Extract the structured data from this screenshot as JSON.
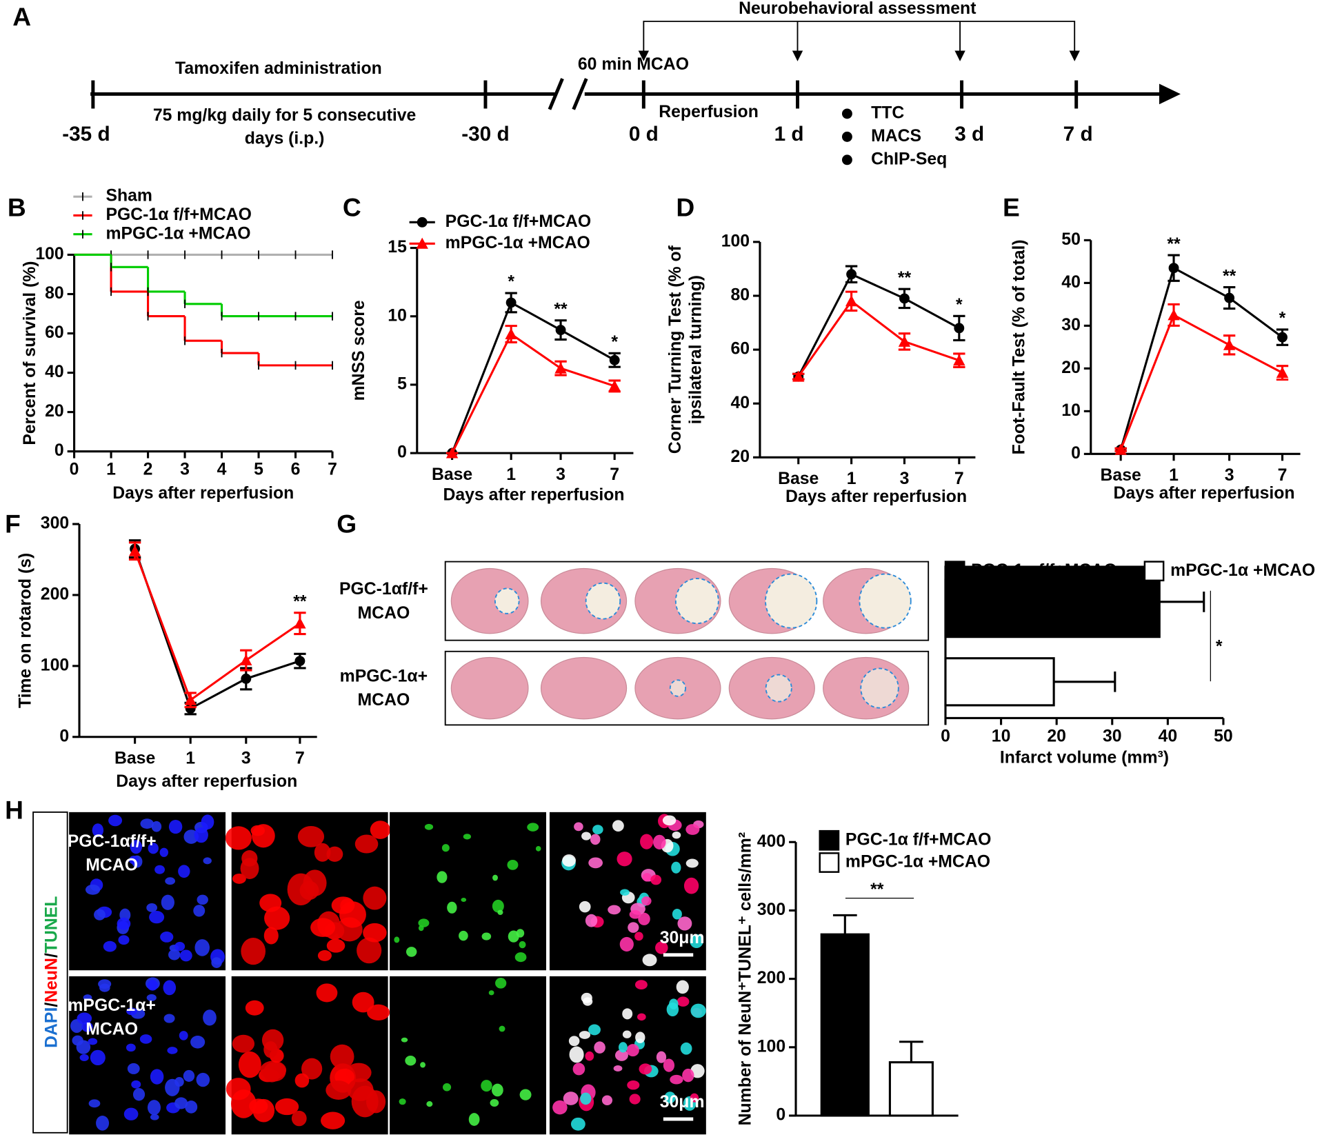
{
  "panel_labels": [
    "A",
    "B",
    "C",
    "D",
    "E",
    "F",
    "G",
    "H"
  ],
  "timeline": {
    "bracket_label": "Neurobehavioral assessment",
    "phase_label": "Tamoxifen administration",
    "dose_lines": [
      "75 mg/kg daily for 5 consecutive",
      "days (i.p.)"
    ],
    "mcao_label": "60 min MCAO",
    "reperfusion_label": "Reperfusion",
    "points": [
      "-35 d",
      "-30 d",
      "0 d",
      "1 d",
      "3 d",
      "7 d"
    ],
    "assays": [
      "TTC",
      "MACS",
      "ChIP-Seq"
    ]
  },
  "ttc_images": {
    "row_labels": [
      [
        "PGC-1αf/f+",
        "MCAO"
      ],
      [
        "mPGC-1α+",
        "MCAO"
      ]
    ]
  },
  "micrographs": {
    "stain_label": [
      "DAPI",
      "/",
      "NeuN",
      "/",
      "TUNEL"
    ],
    "row_labels": [
      [
        "PGC-1αf/f+",
        "MCAO"
      ],
      [
        "mPGC-1α+",
        "MCAO"
      ]
    ],
    "scale_bar": "30μm"
  },
  "chart_data": [
    {
      "type": "step",
      "x": [
        0,
        1,
        2,
        3,
        4,
        5,
        6,
        7
      ],
      "xlim": [
        0,
        7
      ],
      "xticks": [
        0,
        1,
        2,
        3,
        4,
        5,
        6,
        7
      ],
      "ylim": [
        0,
        100
      ],
      "yticks": [
        0,
        20,
        40,
        60,
        80,
        100
      ],
      "x_label": "Days after reperfusion",
      "y_label": "Percent of survival (%)",
      "series": [
        {
          "name": "Sham",
          "color": "#b0b0b0",
          "values": [
            100,
            100,
            100,
            100,
            100,
            100,
            100,
            100
          ]
        },
        {
          "name": "PGC-1α f/f+MCAO",
          "color": "#ff0000",
          "values": [
            100,
            81.25,
            68.75,
            56.25,
            50,
            43.75,
            43.75,
            43.75
          ]
        },
        {
          "name": "mPGC-1α +MCAO",
          "color": "#00cc00",
          "values": [
            100,
            93.75,
            81.25,
            75,
            68.75,
            68.75,
            68.75,
            68.75
          ]
        }
      ]
    },
    {
      "type": "line",
      "categories": [
        "Base",
        "1",
        "3",
        "7"
      ],
      "ylim": [
        0,
        15
      ],
      "yticks": [
        0,
        5,
        10,
        15
      ],
      "x_label": "Days after reperfusion",
      "y_label": "mNSS score",
      "annotations": [
        null,
        "*",
        "**",
        "*"
      ],
      "series": [
        {
          "name": "PGC-1α f/f+MCAO",
          "color": "#000000",
          "marker": "circle",
          "values": [
            0,
            11,
            9,
            6.8
          ],
          "errors": [
            0,
            0.7,
            0.7,
            0.5
          ]
        },
        {
          "name": "mPGC-1α +MCAO",
          "color": "#ff0000",
          "marker": "triangle",
          "values": [
            0,
            8.7,
            6.2,
            4.9
          ],
          "errors": [
            0,
            0.6,
            0.5,
            0.4
          ]
        }
      ]
    },
    {
      "type": "line",
      "categories": [
        "Base",
        "1",
        "3",
        "7"
      ],
      "ylim": [
        20,
        100
      ],
      "yticks": [
        20,
        40,
        60,
        80,
        100
      ],
      "x_label": "Days after reperfusion",
      "y_label": [
        "Corner Turning Test (% of",
        "ipsilateral turning)"
      ],
      "annotations": [
        null,
        null,
        "**",
        "*"
      ],
      "series": [
        {
          "color": "#000000",
          "marker": "circle",
          "values": [
            50,
            88,
            79,
            68
          ],
          "errors": [
            1,
            3,
            3.5,
            4.5
          ]
        },
        {
          "color": "#ff0000",
          "marker": "triangle",
          "values": [
            50,
            78,
            63,
            56
          ],
          "errors": [
            1,
            3.5,
            3,
            2.5
          ]
        }
      ]
    },
    {
      "type": "line",
      "categories": [
        "Base",
        "1",
        "3",
        "7"
      ],
      "ylim": [
        0,
        50
      ],
      "yticks": [
        0,
        10,
        20,
        30,
        40,
        50
      ],
      "x_label": "Days after reperfusion",
      "y_label": "Foot-Fault Test (% of total)",
      "annotations": [
        null,
        "**",
        "**",
        "*"
      ],
      "series": [
        {
          "color": "#000000",
          "marker": "circle",
          "values": [
            1,
            43.5,
            36.5,
            27.3
          ],
          "errors": [
            0.3,
            3,
            2.5,
            1.8
          ]
        },
        {
          "color": "#ff0000",
          "marker": "triangle",
          "values": [
            1,
            32.5,
            25.5,
            19
          ],
          "errors": [
            0.3,
            2.5,
            2.2,
            1.6
          ]
        }
      ]
    },
    {
      "type": "line",
      "categories": [
        "Base",
        "1",
        "3",
        "7"
      ],
      "ylim": [
        0,
        300
      ],
      "yticks": [
        0,
        100,
        200,
        300
      ],
      "x_label": "Days after reperfusion",
      "y_label": "Time on rotarod (s)",
      "annotations": [
        null,
        null,
        null,
        "**"
      ],
      "series": [
        {
          "color": "#000000",
          "marker": "circle",
          "values": [
            265,
            40,
            82,
            107
          ],
          "errors": [
            12,
            8,
            15,
            10
          ]
        },
        {
          "color": "#ff0000",
          "marker": "triangle",
          "values": [
            262,
            52,
            108,
            160
          ],
          "errors": [
            12,
            10,
            14,
            15
          ]
        }
      ]
    },
    {
      "type": "barh",
      "xlim": [
        0,
        50
      ],
      "xticks": [
        0,
        10,
        20,
        30,
        40,
        50
      ],
      "x_label": "Infarct volume (mm³)",
      "annotation": "*",
      "series": [
        {
          "name": "PGC-1α f/f+MCAO",
          "color": "#000000",
          "values": [
            38.5
          ],
          "errors": [
            8
          ]
        },
        {
          "name": "mPGC-1α +MCAO",
          "color": "#ffffff",
          "values": [
            19.5
          ],
          "errors": [
            11
          ]
        }
      ]
    },
    {
      "type": "bar",
      "ylim": [
        0,
        400
      ],
      "yticks": [
        0,
        100,
        200,
        300,
        400
      ],
      "y_label": "Number of NeuN⁺TUNEL⁺ cells/mm²",
      "annotation": "**",
      "series": [
        {
          "name": "PGC-1α f/f+MCAO",
          "color": "#000000",
          "values": [
            265
          ],
          "errors": [
            28
          ]
        },
        {
          "name": "mPGC-1α +MCAO",
          "color": "#ffffff",
          "values": [
            78
          ],
          "errors": [
            30
          ]
        }
      ]
    }
  ]
}
